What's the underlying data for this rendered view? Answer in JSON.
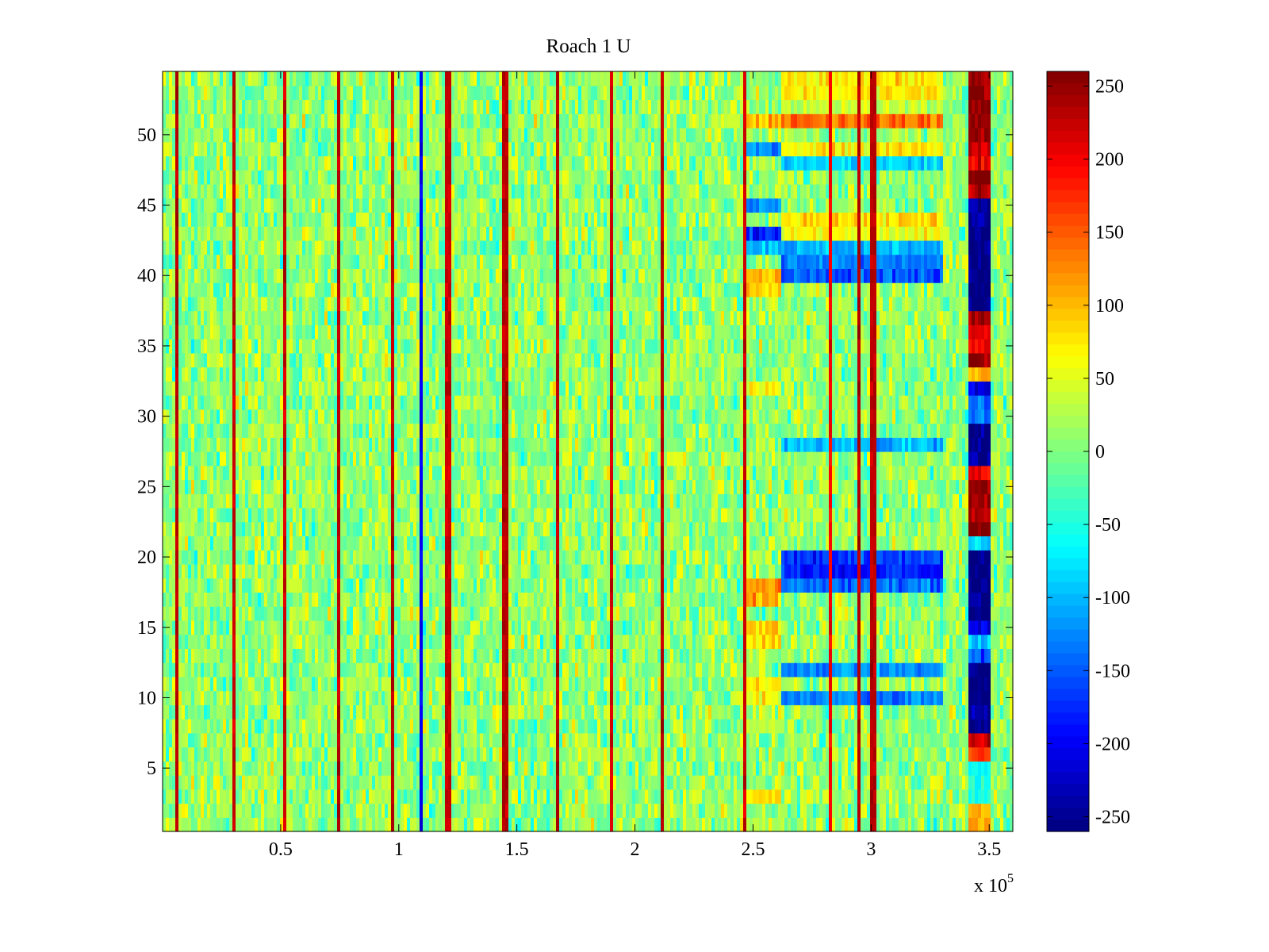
{
  "chart_data": {
    "type": "heatmap",
    "title": "Roach 1 U",
    "xlabel": "",
    "ylabel": "",
    "x_exponent_label": {
      "base": "x 10",
      "exponent": "5"
    },
    "x_range": [
      0,
      360000
    ],
    "y_range": [
      0.5,
      54.5
    ],
    "x_ticks": [
      50000,
      100000,
      150000,
      200000,
      250000,
      300000,
      350000
    ],
    "x_tick_labels": [
      "0.5",
      "1",
      "1.5",
      "2",
      "2.5",
      "3",
      "3.5"
    ],
    "y_ticks": [
      5,
      10,
      15,
      20,
      25,
      30,
      35,
      40,
      45,
      50
    ],
    "y_tick_labels": [
      "5",
      "10",
      "15",
      "20",
      "25",
      "30",
      "35",
      "40",
      "45",
      "50"
    ],
    "rows": 54,
    "colormap": "jet",
    "clim": [
      -260,
      260
    ],
    "colorbar": {
      "ticks": [
        250,
        200,
        150,
        100,
        50,
        0,
        -50,
        -100,
        -150,
        -200,
        -250
      ],
      "tick_labels": [
        "250",
        "200",
        "150",
        "100",
        "50",
        "0",
        "-50",
        "-100",
        "-150",
        "-200",
        "-250"
      ]
    },
    "background_mean": 10,
    "vertical_spikes": [
      {
        "x": 6000,
        "value": 230
      },
      {
        "x": 30000,
        "value": 220
      },
      {
        "x": 52000,
        "value": 220
      },
      {
        "x": 75000,
        "value": 230
      },
      {
        "x": 97000,
        "value": 230
      },
      {
        "x": 110000,
        "value": -200
      },
      {
        "x": 121000,
        "value": 220
      },
      {
        "x": 145000,
        "value": 230
      },
      {
        "x": 167000,
        "value": 230
      },
      {
        "x": 190000,
        "value": 220
      },
      {
        "x": 212000,
        "value": 230
      },
      {
        "x": 246000,
        "value": 220
      },
      {
        "x": 283000,
        "value": 200
      },
      {
        "x": 295000,
        "value": 230
      },
      {
        "x": 301000,
        "value": 230
      }
    ],
    "region_blocks": [
      {
        "x_range": [
          247000,
          262000
        ],
        "row_values": {
          "51": 110,
          "49": -120,
          "45": -110,
          "43": -180,
          "42": -90,
          "40": 90,
          "39": 100,
          "32": 60,
          "18": 120,
          "17": 100,
          "15": 90,
          "14": 80,
          "11": 70,
          "10": 60,
          "8": 50,
          "3": 70
        }
      },
      {
        "x_range": [
          262000,
          330000
        ],
        "row_values": {
          "54": 80,
          "53": 70,
          "52": 40,
          "51": 140,
          "49": 70,
          "48": -90,
          "44": 80,
          "43": 60,
          "42": -100,
          "41": -130,
          "40": -150,
          "28": -100,
          "20": -170,
          "19": -180,
          "18": -140,
          "12": -120,
          "10": -130
        }
      },
      {
        "x_range": [
          341000,
          350000
        ],
        "row_values": {
          "54": 250,
          "53": 240,
          "52": 260,
          "51": 260,
          "50": 260,
          "49": 220,
          "48": 200,
          "47": 260,
          "46": 230,
          "45": -250,
          "44": -250,
          "43": -250,
          "42": -260,
          "41": -260,
          "40": -260,
          "39": -260,
          "38": -260,
          "37": 240,
          "36": 220,
          "35": 200,
          "34": 260,
          "33": 100,
          "32": -220,
          "31": -150,
          "30": -120,
          "29": -250,
          "28": -260,
          "27": -250,
          "26": 200,
          "25": 260,
          "24": 250,
          "23": 240,
          "22": 260,
          "21": -80,
          "20": -260,
          "19": -260,
          "18": -260,
          "17": -250,
          "16": -260,
          "15": -200,
          "14": -100,
          "13": -150,
          "12": -260,
          "11": -260,
          "10": -250,
          "9": -240,
          "8": -250,
          "7": 220,
          "6": 150,
          "5": -60,
          "4": -50,
          "3": -60,
          "2": 100,
          "1": 120
        }
      }
    ]
  }
}
